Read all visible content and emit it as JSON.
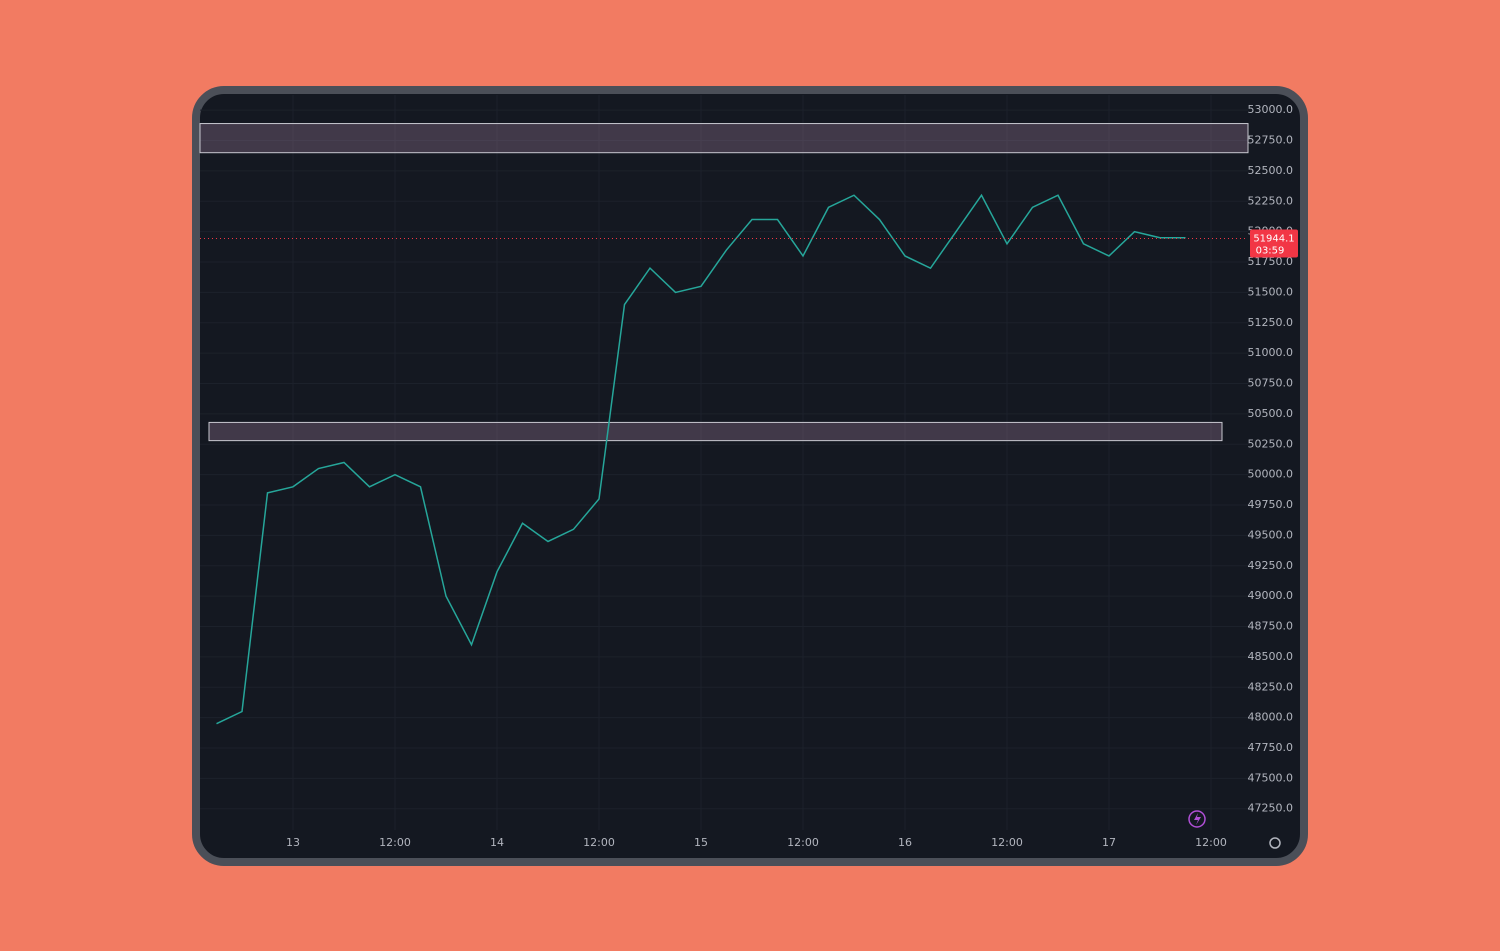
{
  "chart_data": {
    "type": "line",
    "categories": [
      null,
      null,
      null,
      "13",
      null,
      null,
      null,
      "12:00",
      null,
      null,
      null,
      "14",
      null,
      null,
      null,
      "12:00",
      null,
      null,
      null,
      "15",
      null,
      null,
      null,
      "12:00",
      null,
      null,
      null,
      "16",
      null,
      null,
      null,
      "12:00",
      null,
      null,
      null,
      "17",
      null,
      null,
      null,
      "12:00"
    ],
    "series": [
      {
        "color": "#26a69a",
        "values": [
          47950,
          48050,
          49850,
          49900,
          50050,
          50100,
          49900,
          50000,
          49900,
          49000,
          48600,
          49200,
          49600,
          49450,
          49550,
          49800,
          51400,
          51700,
          51500,
          51550,
          51850,
          52100,
          52100,
          51800,
          52200,
          52300,
          52100,
          51800,
          51700,
          52000,
          52300,
          51900,
          52200,
          52300,
          51900,
          51800,
          52000,
          51950,
          51950,
          null
        ]
      }
    ],
    "ylim": [
      47075,
      53125
    ],
    "yticks": [
      {
        "value": 47250,
        "label": "47250.0"
      },
      {
        "value": 47500,
        "label": "47500.0"
      },
      {
        "value": 47750,
        "label": "47750.0"
      },
      {
        "value": 48000,
        "label": "48000.0"
      },
      {
        "value": 48250,
        "label": "48250.0"
      },
      {
        "value": 48500,
        "label": "48500.0"
      },
      {
        "value": 48750,
        "label": "48750.0"
      },
      {
        "value": 49000,
        "label": "49000.0"
      },
      {
        "value": 49250,
        "label": "49250.0"
      },
      {
        "value": 49500,
        "label": "49500.0"
      },
      {
        "value": 49750,
        "label": "49750.0"
      },
      {
        "value": 50000,
        "label": "50000.0"
      },
      {
        "value": 50250,
        "label": "50250.0"
      },
      {
        "value": 50500,
        "label": "50500.0"
      },
      {
        "value": 50750,
        "label": "50750.0"
      },
      {
        "value": 51000,
        "label": "51000.0"
      },
      {
        "value": 51250,
        "label": "51250.0"
      },
      {
        "value": 51500,
        "label": "51500.0"
      },
      {
        "value": 51750,
        "label": "51750.0"
      },
      {
        "value": 52000,
        "label": "52000.0"
      },
      {
        "value": 52250,
        "label": "52250.0"
      },
      {
        "value": 52500,
        "label": "52500.0"
      },
      {
        "value": 52750,
        "label": "52750.0"
      },
      {
        "value": 53000,
        "label": "53000.0"
      }
    ],
    "grid": true,
    "zones": [
      {
        "low": 52650,
        "high": 52890
      },
      {
        "low": 50280,
        "high": 50430
      }
    ],
    "last_price": 51944.1,
    "last_price_color": "#f23645",
    "countdown": "03:59"
  }
}
